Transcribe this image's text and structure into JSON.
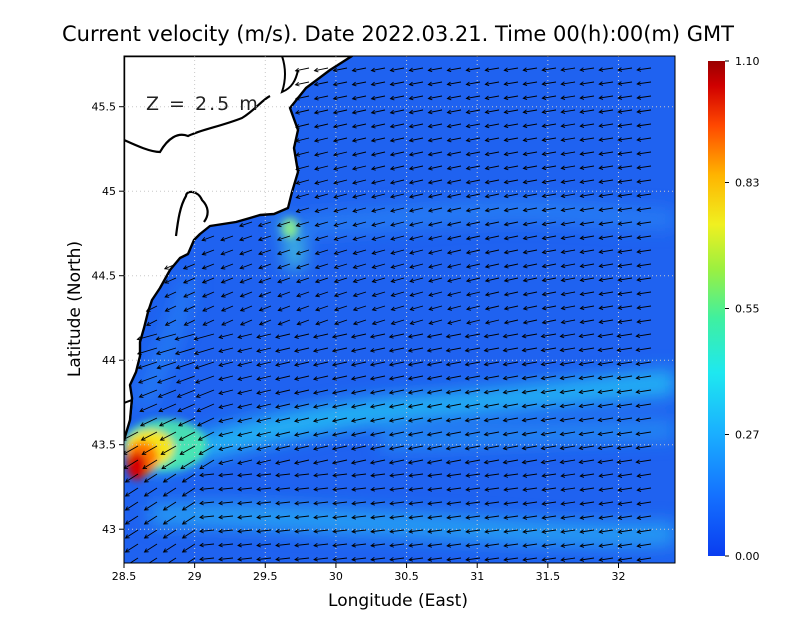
{
  "title": "Current velocity (m/s). Date 2022.03.21. Time 00(h):00(m) GMT",
  "depth_label": "Z = 2.5 m",
  "x_axis": {
    "label": "Longitude (East)",
    "range": [
      28.5,
      32.4
    ],
    "ticks": [
      "28.5",
      "29",
      "29.5",
      "30",
      "30.5",
      "31",
      "31.5",
      "32"
    ],
    "values": [
      28.5,
      29,
      29.5,
      30,
      30.5,
      31,
      31.5,
      32
    ]
  },
  "y_axis": {
    "label": "Latitude (North)",
    "range": [
      42.8,
      45.8
    ],
    "ticks": [
      "43",
      "43.5",
      "44",
      "44.5",
      "45",
      "45.5"
    ],
    "values": [
      43,
      43.5,
      44,
      44.5,
      45,
      45.5
    ]
  },
  "colorbar": {
    "range": [
      0,
      1.1
    ],
    "tick_labels": [
      "1.10",
      "0.83",
      "0.55",
      "0.27",
      "0.00"
    ],
    "tick_values": [
      1.1,
      0.83,
      0.55,
      0.27,
      0
    ]
  },
  "grid": "dotted",
  "colors": {
    "sea_base": "#1f62f0",
    "land": "#ffffff",
    "coastline": "#000000",
    "vector": "#000000"
  }
}
